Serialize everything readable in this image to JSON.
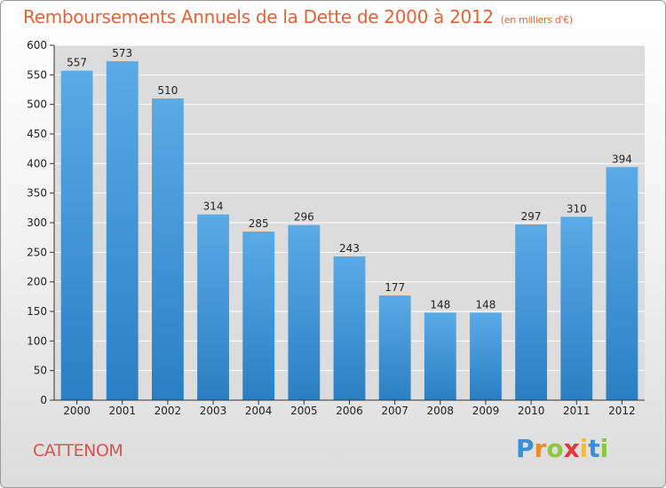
{
  "title": "Remboursements Annuels de la Dette de 2000 à 2012",
  "subtitle": "(en milliers d'€)",
  "commune": "CATTENOM",
  "logo": {
    "text": "Proxiti",
    "letters": [
      {
        "ch": "P",
        "color": "#3a8fd6"
      },
      {
        "ch": "r",
        "color": "#f08a24"
      },
      {
        "ch": "o",
        "color": "#8cc63f"
      },
      {
        "ch": "x",
        "color": "#e0383a"
      },
      {
        "ch": "i",
        "color": "#f4c020"
      },
      {
        "ch": "t",
        "color": "#3a8fd6"
      },
      {
        "ch": "i",
        "color": "#8cc63f"
      }
    ]
  },
  "chart_data": {
    "type": "bar",
    "categories": [
      "2000",
      "2001",
      "2002",
      "2003",
      "2004",
      "2005",
      "2006",
      "2007",
      "2008",
      "2009",
      "2010",
      "2011",
      "2012"
    ],
    "values": [
      557,
      573,
      510,
      314,
      285,
      296,
      243,
      177,
      148,
      148,
      297,
      310,
      394
    ],
    "ylim": [
      0,
      600
    ],
    "yticks": [
      0,
      50,
      100,
      150,
      200,
      250,
      300,
      350,
      400,
      450,
      500,
      550,
      600
    ],
    "grid": true,
    "bar_color_top": "#5aaae6",
    "bar_color_bottom": "#2a7fc4"
  }
}
